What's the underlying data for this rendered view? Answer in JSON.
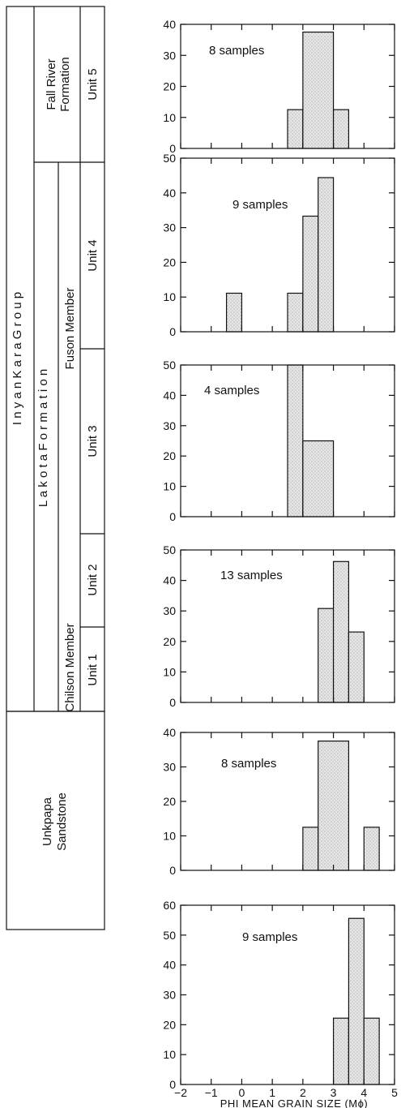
{
  "strat_column": {
    "group": "I n y a n   K a r a   G r o u p",
    "formation": "L a k o t a   F o r m a t i o n",
    "fall_river_line1": "Fall River",
    "fall_river_line2": "Formation",
    "unit5": "Unit 5",
    "unit4": "Unit 4",
    "unit3": "Unit 3",
    "unit2": "Unit 2",
    "unit1": "Unit 1",
    "fuson": "Fuson Member",
    "chilson": "Chilson Member",
    "unkpapa_line1": "Unkpapa",
    "unkpapa_line2": "Sandstone"
  },
  "x_axis": {
    "title": "PHI MEAN GRAIN SIZE (Mϕ)",
    "ticks": [
      -2,
      -1,
      0,
      1,
      2,
      3,
      4,
      5
    ],
    "tick_labels": [
      "−2",
      "−1",
      "0",
      "1",
      "2",
      "3",
      "4",
      "5"
    ],
    "range": [
      -2,
      5
    ]
  },
  "chart_data": [
    {
      "type": "bar",
      "unit": "Unit 5",
      "note": "8 samples",
      "ylim": [
        0,
        40
      ],
      "yticks": [
        0,
        10,
        20,
        30,
        40
      ],
      "bins": [
        [
          1.5,
          2.0,
          12.5
        ],
        [
          2.0,
          3.0,
          37.5
        ],
        [
          3.0,
          3.5,
          12.5
        ]
      ]
    },
    {
      "type": "bar",
      "unit": "Unit 4",
      "note": "9 samples",
      "ylim": [
        0,
        50
      ],
      "yticks": [
        0,
        10,
        20,
        30,
        40,
        50
      ],
      "bins": [
        [
          -0.5,
          0.0,
          11.1
        ],
        [
          1.5,
          2.0,
          11.1
        ],
        [
          2.0,
          2.5,
          33.3
        ],
        [
          2.5,
          3.0,
          44.4
        ]
      ]
    },
    {
      "type": "bar",
      "unit": "Unit 3",
      "note": "4 samples",
      "ylim": [
        0,
        50
      ],
      "yticks": [
        0,
        10,
        20,
        30,
        40,
        50
      ],
      "bins": [
        [
          1.5,
          2.0,
          50
        ],
        [
          2.0,
          3.0,
          25
        ]
      ]
    },
    {
      "type": "bar",
      "unit": "Unit 2",
      "note": "13 samples",
      "ylim": [
        0,
        50
      ],
      "yticks": [
        0,
        10,
        20,
        30,
        40,
        50
      ],
      "bins": [
        [
          2.5,
          3.0,
          30.8
        ],
        [
          3.0,
          3.5,
          46.2
        ],
        [
          3.5,
          4.0,
          23.1
        ]
      ]
    },
    {
      "type": "bar",
      "unit": "Unit 1",
      "note": "8 samples",
      "ylim": [
        0,
        40
      ],
      "yticks": [
        0,
        10,
        20,
        30,
        40
      ],
      "bins": [
        [
          2.0,
          2.5,
          12.5
        ],
        [
          2.5,
          3.5,
          37.5
        ],
        [
          4.0,
          4.5,
          12.5
        ]
      ]
    },
    {
      "type": "bar",
      "unit": "Unkpapa Sandstone",
      "note": "9 samples",
      "ylim": [
        0,
        60
      ],
      "yticks": [
        0,
        10,
        20,
        30,
        40,
        50,
        60
      ],
      "bins": [
        [
          3.0,
          3.5,
          22.2
        ],
        [
          3.5,
          4.0,
          55.6
        ],
        [
          4.0,
          4.5,
          22.2
        ]
      ]
    }
  ]
}
